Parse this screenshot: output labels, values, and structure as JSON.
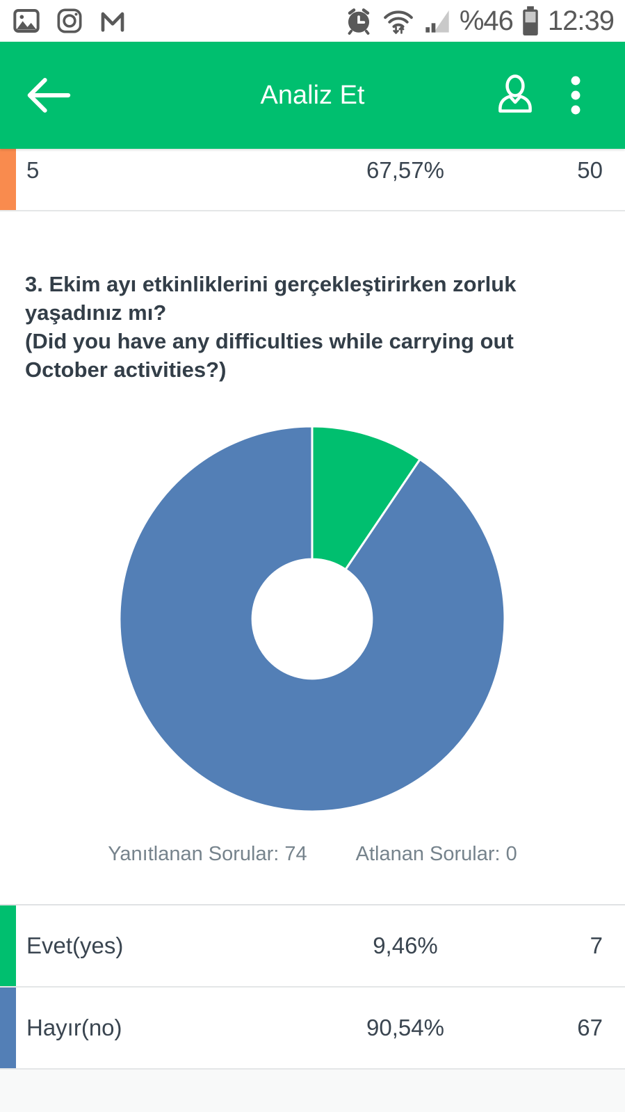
{
  "status_bar": {
    "time": "12:39",
    "battery_percent": "%46",
    "icon_color": "#595959"
  },
  "app_bar": {
    "title": "Analiz Et",
    "background_color": "#00BF6F"
  },
  "previous_answer_row": {
    "label": "5",
    "percent": "67,57%",
    "count": "50",
    "accent_color": "#F98B4E"
  },
  "question": {
    "turkish": "3. Ekim ayı etkinliklerini gerçekleştirirken zorluk yaşadınız mı?",
    "english": "(Did you have any difficulties while carrying out October activities?)"
  },
  "chart_data": {
    "type": "pie",
    "subtype": "donut",
    "categories": [
      "Evet(yes)",
      "Hayır(no)"
    ],
    "values": [
      9.46,
      90.54
    ],
    "counts": [
      7,
      67
    ],
    "colors": [
      "#00BF6F",
      "#537FB6"
    ],
    "start_angle_deg": 0,
    "direction": "clockwise",
    "inner_radius_ratio": 0.31,
    "slice_border_color": "#ffffff",
    "answered": 74,
    "skipped": 0
  },
  "stats": {
    "answered_text": "Yanıtlanan Sorular: 74",
    "skipped_text": "Atlanan Sorular: 0"
  },
  "answer_rows": [
    {
      "label": "Evet(yes)",
      "percent": "9,46%",
      "count": "7",
      "accent_color": "#00BF6F"
    },
    {
      "label": "Hayır(no)",
      "percent": "90,54%",
      "count": "67",
      "accent_color": "#537FB6"
    }
  ]
}
